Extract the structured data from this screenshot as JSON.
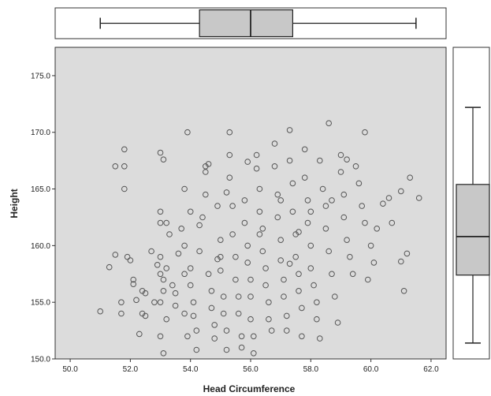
{
  "chart_data": {
    "type": "scatter",
    "xlabel": "Head Circumference",
    "ylabel": "Height",
    "xlim": [
      49.5,
      62.5
    ],
    "ylim": [
      150,
      177.5
    ],
    "x_ticks": [
      "50.0",
      "52.0",
      "54.0",
      "56.0",
      "58.0",
      "60.0",
      "62.0"
    ],
    "y_ticks": [
      "150.0",
      "155.0",
      "160.0",
      "165.0",
      "170.0",
      "175.0"
    ],
    "plot_background": "#dcdcdc",
    "marker_color": "#555555",
    "grid": false,
    "x_boxplot": {
      "whisker_low": 51.0,
      "q1": 54.3,
      "median": 56.0,
      "q3": 57.4,
      "whisker_high": 61.5
    },
    "y_boxplot": {
      "whisker_low": 151.4,
      "q1": 157.4,
      "median": 160.8,
      "q3": 165.4,
      "whisker_high": 172.2
    },
    "points": [
      [
        51.0,
        154.2
      ],
      [
        51.3,
        158.1
      ],
      [
        51.5,
        159.2
      ],
      [
        51.5,
        167.0
      ],
      [
        51.7,
        155.0
      ],
      [
        51.7,
        154.0
      ],
      [
        51.8,
        168.5
      ],
      [
        51.8,
        167.0
      ],
      [
        51.8,
        165.0
      ],
      [
        51.9,
        159.0
      ],
      [
        52.0,
        158.7
      ],
      [
        52.1,
        157.0
      ],
      [
        52.1,
        156.6
      ],
      [
        52.2,
        155.2
      ],
      [
        52.3,
        152.2
      ],
      [
        52.4,
        154.0
      ],
      [
        52.5,
        153.8
      ],
      [
        52.5,
        155.8
      ],
      [
        52.7,
        159.5
      ],
      [
        52.8,
        155.0
      ],
      [
        52.9,
        158.3
      ],
      [
        53.0,
        159.0
      ],
      [
        53.0,
        163.0
      ],
      [
        53.0,
        162.0
      ],
      [
        53.0,
        168.2
      ],
      [
        53.1,
        167.6
      ],
      [
        53.0,
        157.5
      ],
      [
        53.1,
        156.0
      ],
      [
        53.0,
        155.0
      ],
      [
        53.2,
        153.5
      ],
      [
        53.0,
        152.0
      ],
      [
        53.1,
        150.5
      ],
      [
        53.2,
        162.0
      ],
      [
        53.3,
        161.0
      ],
      [
        53.2,
        158.0
      ],
      [
        53.1,
        157.0
      ],
      [
        53.4,
        156.5
      ],
      [
        53.5,
        154.7
      ],
      [
        53.6,
        159.3
      ],
      [
        53.7,
        161.5
      ],
      [
        53.8,
        160.0
      ],
      [
        53.8,
        165.0
      ],
      [
        53.8,
        157.5
      ],
      [
        53.8,
        154.0
      ],
      [
        53.9,
        152.0
      ],
      [
        53.9,
        170.0
      ],
      [
        54.0,
        163.0
      ],
      [
        54.0,
        158.0
      ],
      [
        54.0,
        156.5
      ],
      [
        54.1,
        155.0
      ],
      [
        54.1,
        153.8
      ],
      [
        54.2,
        152.5
      ],
      [
        54.2,
        150.8
      ],
      [
        54.3,
        159.5
      ],
      [
        54.3,
        161.8
      ],
      [
        54.4,
        162.5
      ],
      [
        54.5,
        164.5
      ],
      [
        54.5,
        166.5
      ],
      [
        54.6,
        167.2
      ],
      [
        54.6,
        157.5
      ],
      [
        54.7,
        156.0
      ],
      [
        54.7,
        154.5
      ],
      [
        54.8,
        153.0
      ],
      [
        54.8,
        151.8
      ],
      [
        54.9,
        158.8
      ],
      [
        54.9,
        163.5
      ],
      [
        55.0,
        160.5
      ],
      [
        55.0,
        159.0
      ],
      [
        55.0,
        157.8
      ],
      [
        55.1,
        155.5
      ],
      [
        55.1,
        154.0
      ],
      [
        55.2,
        152.5
      ],
      [
        55.2,
        150.8
      ],
      [
        55.3,
        168.0
      ],
      [
        55.3,
        170.0
      ],
      [
        55.3,
        166.0
      ],
      [
        55.4,
        163.5
      ],
      [
        55.4,
        161.0
      ],
      [
        55.5,
        159.0
      ],
      [
        55.5,
        157.0
      ],
      [
        55.6,
        155.5
      ],
      [
        55.6,
        154.0
      ],
      [
        55.7,
        152.0
      ],
      [
        55.7,
        151.0
      ],
      [
        55.8,
        164.0
      ],
      [
        55.8,
        162.0
      ],
      [
        55.9,
        160.0
      ],
      [
        55.9,
        158.5
      ],
      [
        56.0,
        157.0
      ],
      [
        56.0,
        155.5
      ],
      [
        56.0,
        153.5
      ],
      [
        56.1,
        152.0
      ],
      [
        56.1,
        150.5
      ],
      [
        56.2,
        166.8
      ],
      [
        56.2,
        168.0
      ],
      [
        56.3,
        165.0
      ],
      [
        56.3,
        163.0
      ],
      [
        56.4,
        161.5
      ],
      [
        56.4,
        159.5
      ],
      [
        56.5,
        158.0
      ],
      [
        56.5,
        156.5
      ],
      [
        56.6,
        155.0
      ],
      [
        56.6,
        153.5
      ],
      [
        56.7,
        152.5
      ],
      [
        56.8,
        169.0
      ],
      [
        56.8,
        167.0
      ],
      [
        56.9,
        164.5
      ],
      [
        56.9,
        162.5
      ],
      [
        57.0,
        160.5
      ],
      [
        57.0,
        158.7
      ],
      [
        57.1,
        157.0
      ],
      [
        57.1,
        155.5
      ],
      [
        57.2,
        153.8
      ],
      [
        57.2,
        152.5
      ],
      [
        57.3,
        170.2
      ],
      [
        57.3,
        167.5
      ],
      [
        57.4,
        165.5
      ],
      [
        57.4,
        163.0
      ],
      [
        57.5,
        161.0
      ],
      [
        57.5,
        159.0
      ],
      [
        57.6,
        157.5
      ],
      [
        57.6,
        156.0
      ],
      [
        57.7,
        154.5
      ],
      [
        57.7,
        152.0
      ],
      [
        57.8,
        168.5
      ],
      [
        57.8,
        166.0
      ],
      [
        57.9,
        164.0
      ],
      [
        57.9,
        162.0
      ],
      [
        58.0,
        160.0
      ],
      [
        58.0,
        158.0
      ],
      [
        58.1,
        156.5
      ],
      [
        58.2,
        155.0
      ],
      [
        58.2,
        153.5
      ],
      [
        58.3,
        151.8
      ],
      [
        58.3,
        167.5
      ],
      [
        58.4,
        165.0
      ],
      [
        58.5,
        163.5
      ],
      [
        58.5,
        161.5
      ],
      [
        58.6,
        170.8
      ],
      [
        58.6,
        159.5
      ],
      [
        58.7,
        157.5
      ],
      [
        58.8,
        155.5
      ],
      [
        58.9,
        153.2
      ],
      [
        59.0,
        168.0
      ],
      [
        59.0,
        166.5
      ],
      [
        59.1,
        164.5
      ],
      [
        59.1,
        162.5
      ],
      [
        59.2,
        160.5
      ],
      [
        59.3,
        159.0
      ],
      [
        59.4,
        157.5
      ],
      [
        59.5,
        167.0
      ],
      [
        59.6,
        165.5
      ],
      [
        59.7,
        163.5
      ],
      [
        59.8,
        162.0
      ],
      [
        59.8,
        170.0
      ],
      [
        59.9,
        157.0
      ],
      [
        60.0,
        160.0
      ],
      [
        60.1,
        158.5
      ],
      [
        60.2,
        161.5
      ],
      [
        60.4,
        163.7
      ],
      [
        60.6,
        164.2
      ],
      [
        60.7,
        162.0
      ],
      [
        61.0,
        164.8
      ],
      [
        61.0,
        158.6
      ],
      [
        61.1,
        156.0
      ],
      [
        61.2,
        159.3
      ],
      [
        61.3,
        166.0
      ],
      [
        61.6,
        164.2
      ],
      [
        54.5,
        167.0
      ],
      [
        55.2,
        164.7
      ],
      [
        56.3,
        161.0
      ],
      [
        57.0,
        164.0
      ],
      [
        57.6,
        161.2
      ],
      [
        58.7,
        164.0
      ],
      [
        53.5,
        155.8
      ],
      [
        55.9,
        167.4
      ],
      [
        57.3,
        158.4
      ],
      [
        58.0,
        163.0
      ],
      [
        59.2,
        167.6
      ],
      [
        52.4,
        156.0
      ]
    ]
  }
}
